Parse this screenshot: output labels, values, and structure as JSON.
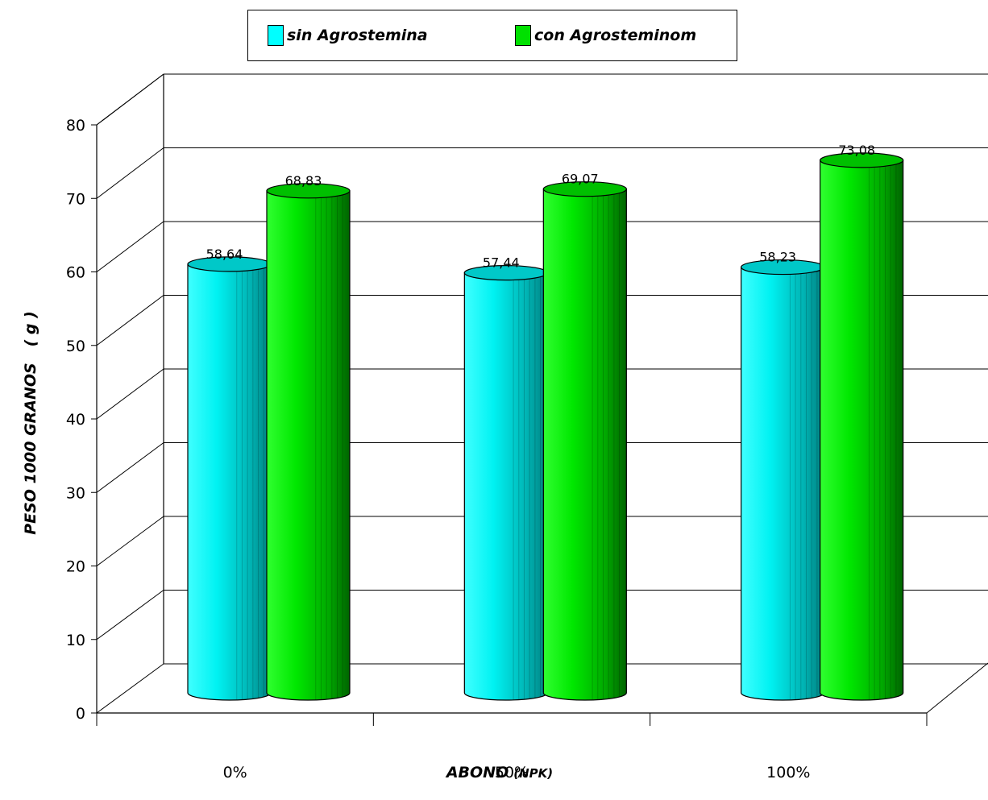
{
  "chart_data": {
    "type": "bar",
    "title": "",
    "xlabel": "ABONO",
    "xlabel_suffix": "(NPK)",
    "ylabel": "PESO 1000 GRANOS   ( g )",
    "categories": [
      "0%",
      "50%",
      "100%"
    ],
    "series": [
      {
        "name": "sin Agrostemina",
        "values": [
          58.64,
          57.44,
          58.23
        ],
        "labels": [
          "58,64",
          "57,44",
          "58,23"
        ],
        "color": "#00ffff"
      },
      {
        "name": "con Agrosteminom",
        "values": [
          68.83,
          69.07,
          73.08
        ],
        "labels": [
          "68,83",
          "69,07",
          "73,08"
        ],
        "color": "#00e000"
      }
    ],
    "ylim": [
      0,
      80
    ],
    "yticks": [
      "0",
      "10",
      "20",
      "30",
      "40",
      "50",
      "60",
      "70",
      "80"
    ],
    "grid": true,
    "style": "3d-cylinder",
    "legend_position": "top"
  }
}
